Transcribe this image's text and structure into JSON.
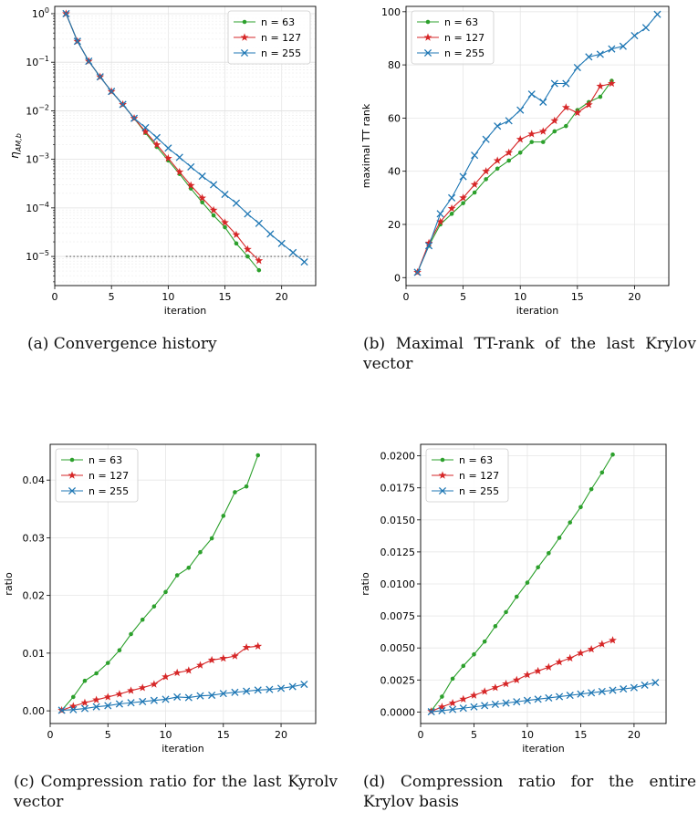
{
  "chart_data": [
    {
      "type": "line",
      "xlabel": "iteration",
      "ylabel": "η_{AM,b}",
      "yscale": "log",
      "xlim": [
        0,
        23
      ],
      "ylim_exp": [
        -5.6,
        0.15
      ],
      "xticks": [
        0,
        5,
        10,
        15,
        20
      ],
      "yticks_exp": [
        0,
        -1,
        -2,
        -3,
        -4,
        -5
      ],
      "grid": true,
      "legend": "top-right",
      "threshold": {
        "y": 1e-05,
        "x": [
          1,
          22
        ],
        "style": "dotted"
      },
      "series": [
        {
          "name": "n = 63",
          "color": "#2ca02c",
          "marker": "dot",
          "x": [
            1,
            2,
            3,
            4,
            5,
            6,
            7,
            8,
            9,
            10,
            11,
            12,
            13,
            14,
            15,
            16,
            17,
            18
          ],
          "y": [
            1.0,
            0.27,
            0.105,
            0.05,
            0.025,
            0.0135,
            0.007,
            0.0035,
            0.0018,
            0.00095,
            0.0005,
            0.00025,
            0.00013,
            7e-05,
            4e-05,
            1.85e-05,
            1e-05,
            5.2e-06
          ]
        },
        {
          "name": "n = 127",
          "color": "#d62728",
          "marker": "star",
          "x": [
            1,
            2,
            3,
            4,
            5,
            6,
            7,
            8,
            9,
            10,
            11,
            12,
            13,
            14,
            15,
            16,
            17,
            18
          ],
          "y": [
            1.0,
            0.27,
            0.105,
            0.05,
            0.025,
            0.0135,
            0.007,
            0.0037,
            0.002,
            0.00105,
            0.00055,
            0.00029,
            0.00016,
            9e-05,
            5e-05,
            2.8e-05,
            1.4e-05,
            8.2e-06
          ]
        },
        {
          "name": "n = 255",
          "color": "#1f77b4",
          "marker": "x",
          "x": [
            1,
            2,
            3,
            4,
            5,
            6,
            7,
            8,
            9,
            10,
            11,
            12,
            13,
            14,
            15,
            16,
            17,
            18,
            19,
            20,
            21,
            22
          ],
          "y": [
            1.0,
            0.27,
            0.105,
            0.05,
            0.025,
            0.0135,
            0.007,
            0.0045,
            0.0028,
            0.0017,
            0.0011,
            0.0007,
            0.00045,
            0.0003,
            0.00019,
            0.000125,
            7.5e-05,
            4.8e-05,
            2.9e-05,
            1.85e-05,
            1.2e-05,
            7.7e-06
          ]
        }
      ],
      "caption": "(a) Convergence history"
    },
    {
      "type": "line",
      "xlabel": "iteration",
      "ylabel": "maximal TT rank",
      "xlim": [
        0,
        23
      ],
      "ylim": [
        -3,
        102
      ],
      "xticks": [
        0,
        5,
        10,
        15,
        20
      ],
      "yticks": [
        0,
        20,
        40,
        60,
        80,
        100
      ],
      "yticklabels": [
        "0",
        "20",
        "40",
        "60",
        "80",
        "100"
      ],
      "grid": true,
      "legend": "top-left",
      "series": [
        {
          "name": "n = 63",
          "color": "#2ca02c",
          "marker": "dot",
          "x": [
            1,
            2,
            3,
            4,
            5,
            6,
            7,
            8,
            9,
            10,
            11,
            12,
            13,
            14,
            15,
            16,
            17,
            18
          ],
          "y": [
            2,
            12,
            20,
            24,
            28,
            32,
            37,
            41,
            44,
            47,
            51,
            51,
            55,
            57,
            63,
            66,
            68,
            74
          ]
        },
        {
          "name": "n = 127",
          "color": "#d62728",
          "marker": "star",
          "x": [
            1,
            2,
            3,
            4,
            5,
            6,
            7,
            8,
            9,
            10,
            11,
            12,
            13,
            14,
            15,
            16,
            17,
            18
          ],
          "y": [
            2,
            13,
            21,
            26,
            30,
            35,
            40,
            44,
            47,
            52,
            54,
            55,
            59,
            64,
            62,
            65,
            72,
            73
          ]
        },
        {
          "name": "n = 255",
          "color": "#1f77b4",
          "marker": "x",
          "x": [
            1,
            2,
            3,
            4,
            5,
            6,
            7,
            8,
            9,
            10,
            11,
            12,
            13,
            14,
            15,
            16,
            17,
            18,
            19,
            20,
            21,
            22
          ],
          "y": [
            2,
            12,
            24,
            30,
            38,
            46,
            52,
            57,
            59,
            63,
            69,
            66,
            73,
            73,
            79,
            83,
            84,
            86,
            87,
            91,
            94,
            99
          ]
        }
      ],
      "caption": "(b) Maximal TT-rank of the last Krylov vector"
    },
    {
      "type": "line",
      "xlabel": "iteration",
      "ylabel": "ratio",
      "xlim": [
        0,
        23
      ],
      "ylim": [
        -0.0022,
        0.0462
      ],
      "xticks": [
        0,
        5,
        10,
        15,
        20
      ],
      "yticks": [
        0,
        0.01,
        0.02,
        0.03,
        0.04
      ],
      "yticklabels": [
        "0.00",
        "0.01",
        "0.02",
        "0.03",
        "0.04"
      ],
      "grid": true,
      "legend": "top-left",
      "series": [
        {
          "name": "n = 63",
          "color": "#2ca02c",
          "marker": "dot",
          "x": [
            1,
            2,
            3,
            4,
            5,
            6,
            7,
            8,
            9,
            10,
            11,
            12,
            13,
            14,
            15,
            16,
            17,
            18
          ],
          "y": [
            0.0001,
            0.0024,
            0.0052,
            0.0065,
            0.0083,
            0.0105,
            0.0133,
            0.0158,
            0.0181,
            0.0206,
            0.0235,
            0.0248,
            0.0275,
            0.0299,
            0.0338,
            0.0379,
            0.0389,
            0.0443
          ]
        },
        {
          "name": "n = 127",
          "color": "#d62728",
          "marker": "star",
          "x": [
            1,
            2,
            3,
            4,
            5,
            6,
            7,
            8,
            9,
            10,
            11,
            12,
            13,
            14,
            15,
            16,
            17,
            18
          ],
          "y": [
            0.0001,
            0.0008,
            0.0014,
            0.0019,
            0.0024,
            0.0029,
            0.0035,
            0.004,
            0.0046,
            0.0059,
            0.0066,
            0.007,
            0.0079,
            0.0088,
            0.0091,
            0.0095,
            0.011,
            0.0112
          ]
        },
        {
          "name": "n = 255",
          "color": "#1f77b4",
          "marker": "x",
          "x": [
            1,
            2,
            3,
            4,
            5,
            6,
            7,
            8,
            9,
            10,
            11,
            12,
            13,
            14,
            15,
            16,
            17,
            18,
            19,
            20,
            21,
            22
          ],
          "y": [
            0.0001,
            0.0002,
            0.0004,
            0.0007,
            0.0009,
            0.0012,
            0.0014,
            0.0016,
            0.0018,
            0.002,
            0.0024,
            0.0023,
            0.0026,
            0.0027,
            0.003,
            0.0032,
            0.0034,
            0.0036,
            0.0037,
            0.0039,
            0.0042,
            0.0046
          ]
        }
      ],
      "caption": "(c) Compression ratio for the last Kyrolv vector"
    },
    {
      "type": "line",
      "xlabel": "iteration",
      "ylabel": "ratio",
      "xlim": [
        0,
        23
      ],
      "ylim": [
        -0.0009,
        0.0209
      ],
      "xticks": [
        0,
        5,
        10,
        15,
        20
      ],
      "yticks": [
        0,
        0.0025,
        0.005,
        0.0075,
        0.01,
        0.0125,
        0.015,
        0.0175,
        0.02
      ],
      "yticklabels": [
        "0.0000",
        "0.0025",
        "0.0050",
        "0.0075",
        "0.0100",
        "0.0125",
        "0.0150",
        "0.0175",
        "0.0200"
      ],
      "grid": true,
      "legend": "top-left",
      "series": [
        {
          "name": "n = 63",
          "color": "#2ca02c",
          "marker": "dot",
          "x": [
            1,
            2,
            3,
            4,
            5,
            6,
            7,
            8,
            9,
            10,
            11,
            12,
            13,
            14,
            15,
            16,
            17,
            18
          ],
          "y": [
            0.0001,
            0.0012,
            0.0026,
            0.0036,
            0.0045,
            0.0055,
            0.0067,
            0.0078,
            0.009,
            0.0101,
            0.0113,
            0.0124,
            0.0136,
            0.0148,
            0.016,
            0.0174,
            0.0187,
            0.0201
          ]
        },
        {
          "name": "n = 127",
          "color": "#d62728",
          "marker": "star",
          "x": [
            1,
            2,
            3,
            4,
            5,
            6,
            7,
            8,
            9,
            10,
            11,
            12,
            13,
            14,
            15,
            16,
            17,
            18
          ],
          "y": [
            5e-05,
            0.0004,
            0.0007,
            0.001,
            0.0013,
            0.0016,
            0.0019,
            0.0022,
            0.0025,
            0.0029,
            0.0032,
            0.0035,
            0.0039,
            0.0042,
            0.0046,
            0.0049,
            0.0053,
            0.0056
          ]
        },
        {
          "name": "n = 255",
          "color": "#1f77b4",
          "marker": "x",
          "x": [
            1,
            2,
            3,
            4,
            5,
            6,
            7,
            8,
            9,
            10,
            11,
            12,
            13,
            14,
            15,
            16,
            17,
            18,
            19,
            20,
            21,
            22
          ],
          "y": [
            2e-05,
            0.0001,
            0.0002,
            0.0003,
            0.0004,
            0.0005,
            0.0006,
            0.0007,
            0.0008,
            0.0009,
            0.001,
            0.0011,
            0.0012,
            0.0013,
            0.0014,
            0.0015,
            0.0016,
            0.0017,
            0.0018,
            0.0019,
            0.0021,
            0.0023
          ]
        }
      ],
      "caption": "(d) Compression ratio for the entire Krylov basis"
    }
  ]
}
